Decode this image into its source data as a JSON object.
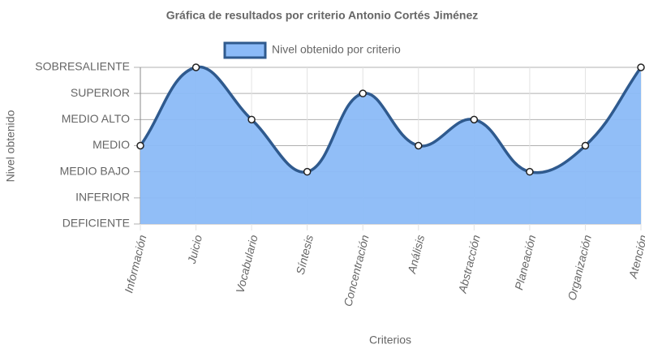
{
  "chart_data": {
    "type": "line",
    "title": "Gráfica de resultados por criterio Antonio Cortés Jiménez",
    "x_label": "Criterios",
    "y_label": "Nivel obtenido",
    "categories": [
      "Información",
      "Juicio",
      "Vocabulario",
      "Síntesis",
      "Concentración",
      "Análisis",
      "Abstracción",
      "Planeación",
      "Organización",
      "Atención"
    ],
    "series": [
      {
        "name": "Nivel obtenido por criterio",
        "color": "#2f5a8e",
        "fill": "#8bbaf7",
        "values": [
          3,
          6,
          4,
          2,
          5,
          3,
          4,
          2,
          3,
          6
        ]
      }
    ],
    "ylim": [
      0,
      6
    ],
    "yticks": [
      {
        "value": 0,
        "label": "DEFICIENTE"
      },
      {
        "value": 1,
        "label": "INFERIOR"
      },
      {
        "value": 2,
        "label": "MEDIO BAJO"
      },
      {
        "value": 3,
        "label": "MEDIO"
      },
      {
        "value": 4,
        "label": "MEDIO ALTO"
      },
      {
        "value": 5,
        "label": "SUPERIOR"
      },
      {
        "value": 6,
        "label": "SOBRESALIENTE"
      }
    ],
    "grid": true,
    "legend": "top"
  }
}
